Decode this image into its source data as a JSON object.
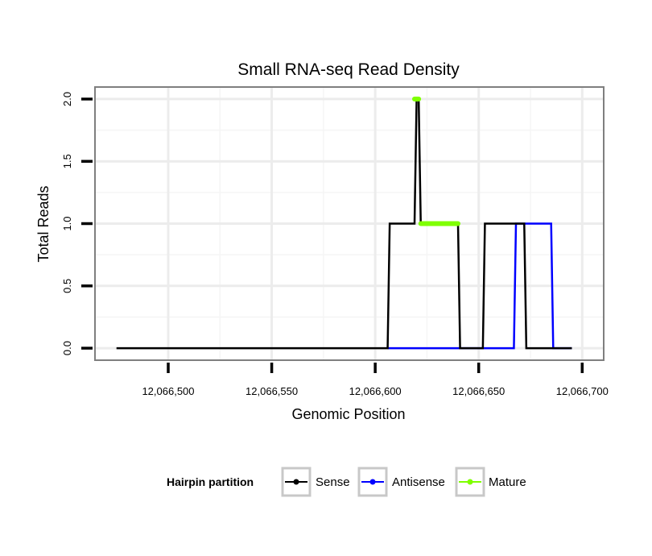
{
  "chart_data": {
    "type": "line",
    "title": "Small RNA-seq Read Density",
    "xlabel": "Genomic Position",
    "ylabel": "Total Reads",
    "xlim": [
      12066465,
      12066710
    ],
    "ylim": [
      -0.09,
      2.09
    ],
    "x_ticks": [
      12066500,
      12066550,
      12066600,
      12066650,
      12066700
    ],
    "x_tick_labels": [
      "12,066,500",
      "12,066,550",
      "12,066,600",
      "12,066,650",
      "12,066,700"
    ],
    "y_ticks": [
      0,
      0.5,
      1,
      1.5,
      2
    ],
    "y_tick_labels": [
      "0.0",
      "0.5",
      "1.0",
      "1.5",
      "2.0"
    ],
    "grid": true,
    "legend": {
      "title": "Hairpin partition",
      "placement": "bottom",
      "entries": [
        "Sense",
        "Antisense",
        "Mature"
      ]
    },
    "series": [
      {
        "name": "Sense",
        "color": "#000000",
        "x": [
          12066475,
          12066606,
          12066607,
          12066619,
          12066620,
          12066621,
          12066622,
          12066640,
          12066641,
          12066652,
          12066653,
          12066670,
          12066671,
          12066672,
          12066673,
          12066695
        ],
        "y": [
          0,
          0,
          1,
          1,
          2,
          2,
          1,
          1,
          0,
          0,
          1,
          1,
          1,
          1,
          0,
          0
        ]
      },
      {
        "name": "Antisense",
        "color": "#0000ff",
        "x": [
          12066606,
          12066667,
          12066668,
          12066685,
          12066686,
          12066695
        ],
        "y": [
          0,
          0,
          1,
          1,
          0,
          0
        ]
      },
      {
        "name": "Mature",
        "color": "#7fff00",
        "segments": [
          {
            "x": [
              12066619,
              12066621
            ],
            "y": [
              2,
              2
            ]
          },
          {
            "x": [
              12066622,
              12066640
            ],
            "y": [
              1,
              1
            ]
          }
        ]
      }
    ]
  }
}
